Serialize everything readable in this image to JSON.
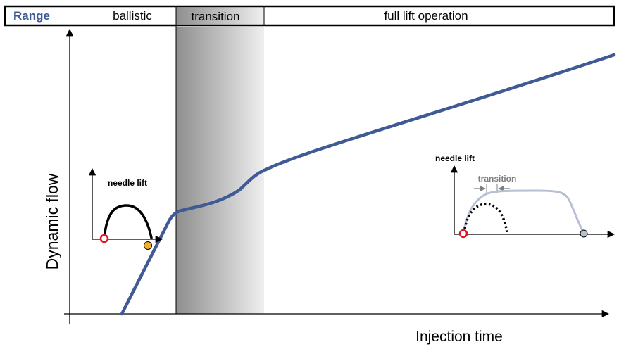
{
  "range_bar": {
    "label": "Range",
    "label_color": "#3b5b95",
    "segments": [
      {
        "label": "ballistic"
      },
      {
        "label": "transition"
      },
      {
        "label": "full lift operation"
      }
    ]
  },
  "axes": {
    "y_label": "Dynamic flow",
    "x_label": "Injection time"
  },
  "inset_ballistic": {
    "title": "needle lift"
  },
  "inset_full_lift": {
    "title": "needle lift",
    "transition_label": "transition"
  },
  "colors": {
    "main_curve": "#3f5a94",
    "full_lift_curve": "#b7c0d3",
    "start_marker": "#d91a20",
    "ballistic_end_marker": "#efb02a",
    "full_lift_end_marker": "#b6bfcf",
    "transition_band_dark": "#8e8e8e",
    "transition_band_light": "#efefef"
  }
}
